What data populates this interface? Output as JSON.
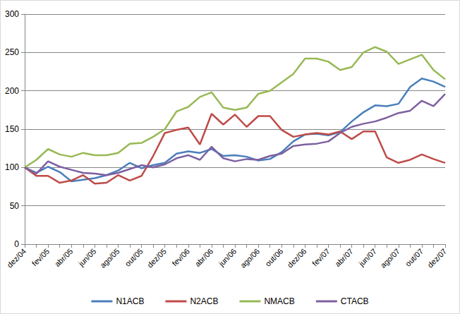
{
  "chart_data": {
    "type": "line",
    "categories": [
      "dez/04",
      null,
      "fev/05",
      null,
      "abr/05",
      null,
      "jun/05",
      null,
      "ago/05",
      null,
      "out/05",
      null,
      "dez/05",
      null,
      "fev/06",
      null,
      "abr/06",
      null,
      "jun/06",
      null,
      "ago/06",
      null,
      "out/06",
      null,
      "dez/06",
      null,
      "fev/07",
      null,
      "abr/07",
      null,
      "jun/07",
      null,
      "ago/07",
      null,
      "out/07",
      null,
      "dez/07"
    ],
    "series": [
      {
        "name": "N1ACB",
        "color": "#4a7ebb",
        "values": [
          100,
          93,
          101,
          94,
          82,
          84,
          86,
          90,
          96,
          106,
          99,
          103,
          106,
          118,
          121,
          119,
          124,
          115,
          116,
          114,
          109,
          111,
          120,
          134,
          143,
          144,
          142,
          146,
          160,
          172,
          181,
          180,
          183,
          205,
          216,
          212,
          205
        ]
      },
      {
        "name": "N2ACB",
        "color": "#be4b48",
        "values": [
          100,
          89,
          89,
          80,
          83,
          90,
          79,
          80,
          90,
          83,
          89,
          115,
          145,
          149,
          152,
          130,
          170,
          156,
          169,
          153,
          167,
          167,
          149,
          140,
          143,
          145,
          143,
          147,
          137,
          147,
          147,
          113,
          106,
          110,
          117,
          111,
          106
        ]
      },
      {
        "name": "NMACB",
        "color": "#98b954",
        "values": [
          100,
          110,
          124,
          117,
          114,
          119,
          116,
          116,
          119,
          131,
          132,
          140,
          150,
          173,
          179,
          192,
          198,
          178,
          175,
          178,
          196,
          200,
          211,
          222,
          242,
          242,
          238,
          227,
          231,
          250,
          257,
          251,
          235,
          241,
          247,
          227,
          215
        ]
      },
      {
        "name": "CTACB",
        "color": "#7d60a0",
        "values": [
          100,
          92,
          108,
          101,
          97,
          93,
          92,
          90,
          93,
          98,
          103,
          100,
          104,
          112,
          116,
          110,
          127,
          112,
          108,
          111,
          110,
          115,
          118,
          128,
          130,
          131,
          134,
          145,
          153,
          157,
          160,
          165,
          171,
          174,
          187,
          180,
          196
        ]
      }
    ],
    "ylim": [
      0,
      300
    ],
    "yticks": [
      0,
      50,
      100,
      150,
      200,
      250,
      300
    ],
    "grid": true,
    "legend": "bottom",
    "marker": "none"
  }
}
